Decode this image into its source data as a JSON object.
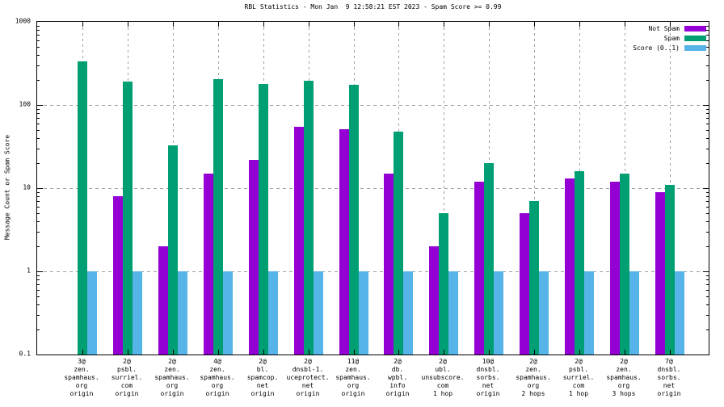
{
  "page": {
    "background": "#ffffff",
    "text_color": "#000000",
    "grid_color": "#9e9e9e",
    "axis_color": "#000000"
  },
  "chart_data": {
    "type": "bar",
    "title": "RBL Statistics - Mon Jan  9 12:58:21 EST 2023 - Spam Score >= 0.99",
    "xlabel": "",
    "ylabel": "Message Count or Spam Score",
    "yscale": "log",
    "ylim": [
      0.1,
      1000
    ],
    "ytick_labels": [
      "1000",
      "100",
      "10",
      "1",
      "0.1"
    ],
    "ytick_values": [
      1000,
      100,
      10,
      1,
      0.1
    ],
    "grid": true,
    "legend_position": "top-right-inside",
    "categories": [
      [
        "3@",
        "zen.",
        "spamhaus.",
        "org",
        "origin"
      ],
      [
        "2@",
        "psbl.",
        "surriel.",
        "com",
        "origin"
      ],
      [
        "2@",
        "zen.",
        "spamhaus.",
        "org",
        "origin"
      ],
      [
        "4@",
        "zen.",
        "spamhaus.",
        "org",
        "origin"
      ],
      [
        "2@",
        "bl.",
        "spamcop.",
        "net",
        "origin"
      ],
      [
        "2@",
        "dnsbl-1.",
        "uceprotect.",
        "net",
        "origin"
      ],
      [
        "11@",
        "zen.",
        "spamhaus.",
        "org",
        "origin"
      ],
      [
        "2@",
        "db.",
        "wpbl.",
        "info",
        "origin"
      ],
      [
        "2@",
        "ubl.",
        "unsubscore.",
        "com",
        "1 hop"
      ],
      [
        "10@",
        "dnsbl.",
        "sorbs.",
        "net",
        "origin"
      ],
      [
        "2@",
        "zen.",
        "spamhaus.",
        "org",
        "2 hops"
      ],
      [
        "2@",
        "psbl.",
        "surriel.",
        "com",
        "1 hop"
      ],
      [
        "2@",
        "zen.",
        "spamhaus.",
        "org",
        "3 hops"
      ],
      [
        "7@",
        "dnsbl.",
        "sorbs.",
        "net",
        "origin"
      ]
    ],
    "series": [
      {
        "name": "Not Spam",
        "color": "#9400d3",
        "values": [
          null,
          8,
          2,
          15,
          22,
          55,
          51,
          15,
          2,
          12,
          5,
          13,
          12,
          9
        ]
      },
      {
        "name": "Spam",
        "color": "#009e73",
        "values": [
          335,
          190,
          33,
          205,
          178,
          195,
          174,
          48,
          5,
          20,
          7,
          16,
          15,
          11
        ]
      },
      {
        "name": "Score (0..1)",
        "color": "#56b4e9",
        "values": [
          0.99,
          0.99,
          0.99,
          0.99,
          0.99,
          0.99,
          0.99,
          0.99,
          0.99,
          0.99,
          0.99,
          0.99,
          0.99,
          0.99
        ]
      }
    ]
  }
}
